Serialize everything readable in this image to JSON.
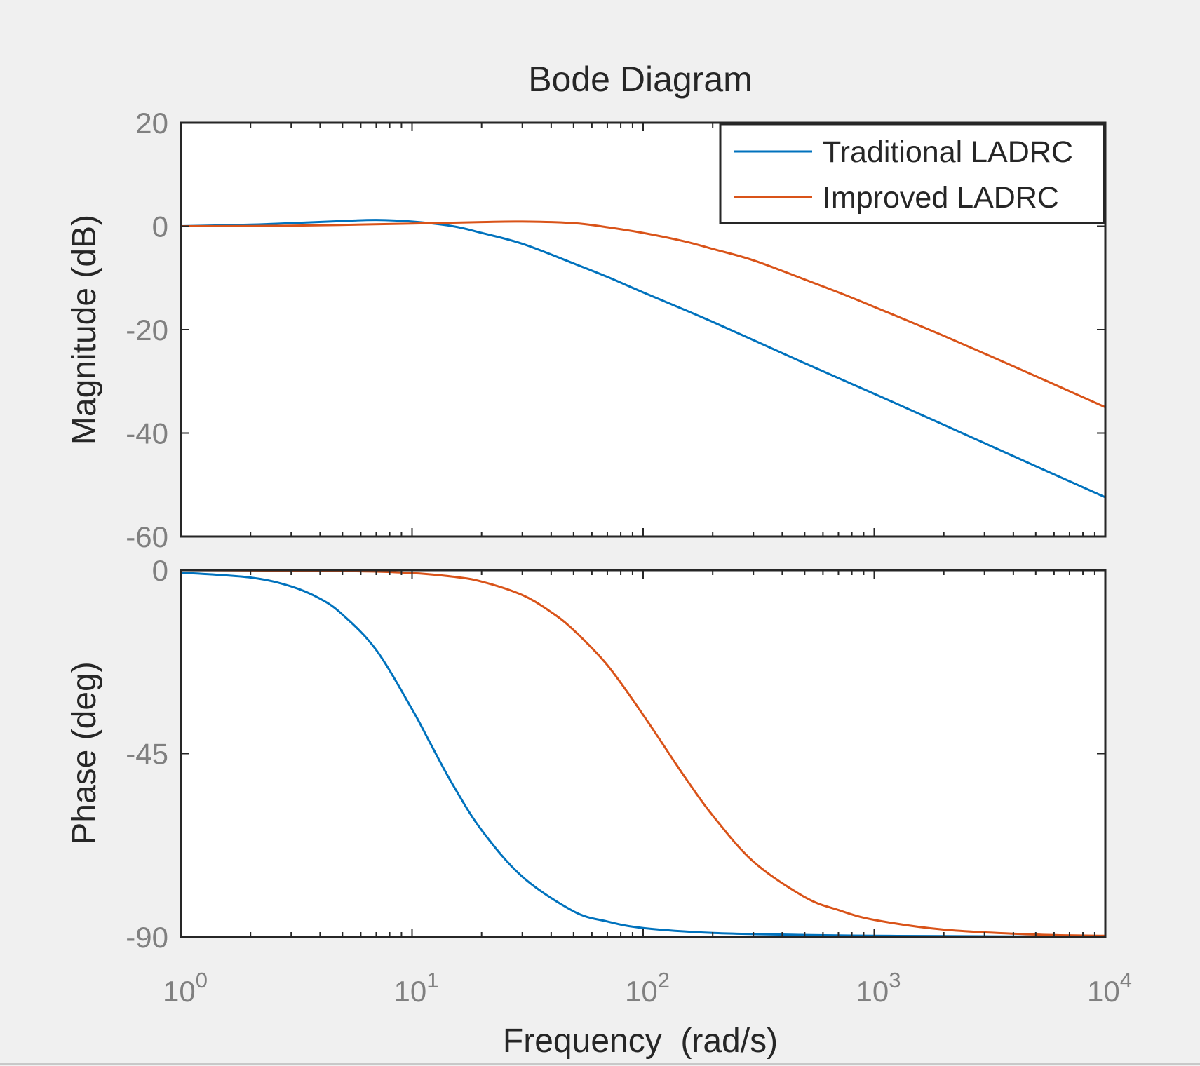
{
  "chart_data": {
    "type": "line",
    "title": "Bode Diagram",
    "xlabel": "Frequency  (rad/s)",
    "x_scale": "log",
    "xlim": [
      1,
      10000
    ],
    "x_ticks": [
      {
        "value": 1,
        "base": "10",
        "exp": "0"
      },
      {
        "value": 10,
        "base": "10",
        "exp": "1"
      },
      {
        "value": 100,
        "base": "10",
        "exp": "2"
      },
      {
        "value": 1000,
        "base": "10",
        "exp": "3"
      },
      {
        "value": 10000,
        "base": "10",
        "exp": "4"
      }
    ],
    "legend": {
      "position": "top-right",
      "entries": [
        "Traditional LADRC",
        "Improved LADRC"
      ]
    },
    "colors": {
      "traditional": "#0072BD",
      "improved": "#D95319",
      "figure_bg": "#f0f0f0",
      "axes_bg": "#ffffff",
      "axis": "#262626",
      "tick_text": "#808080"
    },
    "panels": [
      {
        "id": "magnitude",
        "ylabel": "Magnitude (dB)",
        "ylim": [
          -60,
          20
        ],
        "y_ticks": [
          20,
          0,
          -20,
          -40,
          -60
        ],
        "series": [
          {
            "name": "Traditional LADRC",
            "x": [
              1,
              2,
              3,
              5,
              7,
              10,
              15,
              20,
              30,
              50,
              70,
              100,
              200,
              500,
              1000,
              2000,
              5000,
              10000
            ],
            "y": [
              0,
              0.3,
              0.6,
              1.0,
              1.2,
              0.9,
              0,
              -1.3,
              -3.4,
              -7.2,
              -9.8,
              -12.8,
              -18.5,
              -26.5,
              -32.4,
              -38.4,
              -46.4,
              -52.4
            ]
          },
          {
            "name": "Improved LADRC",
            "x": [
              1,
              3,
              10,
              20,
              30,
              50,
              70,
              100,
              150,
              200,
              300,
              500,
              700,
              1000,
              2000,
              5000,
              10000
            ],
            "y": [
              0,
              0.1,
              0.5,
              0.8,
              0.9,
              0.6,
              -0.2,
              -1.3,
              -2.9,
              -4.4,
              -6.6,
              -10.3,
              -12.8,
              -15.6,
              -21.2,
              -29.0,
              -35.0
            ]
          }
        ]
      },
      {
        "id": "phase",
        "ylabel": "Phase (deg)",
        "ylim": [
          -90,
          0
        ],
        "y_ticks": [
          0,
          -45,
          -90
        ],
        "series": [
          {
            "name": "Traditional LADRC",
            "x": [
              1,
              2,
              3,
              4,
              5,
              7,
              10,
              12,
              15,
              20,
              30,
              50,
              70,
              100,
              200,
              500,
              1000,
              2000,
              5000,
              10000
            ],
            "y": [
              -0.6,
              -1.8,
              -4.0,
              -7.0,
              -10.9,
              -19.6,
              -34.1,
              -42.5,
              -52.6,
              -63.8,
              -75.2,
              -83.7,
              -86.2,
              -87.8,
              -89.0,
              -89.5,
              -89.7,
              -89.8,
              -89.9,
              -90.0
            ]
          },
          {
            "name": "Improved LADRC",
            "x": [
              1,
              5,
              10,
              15,
              20,
              30,
              40,
              50,
              70,
              100,
              150,
              200,
              300,
              500,
              700,
              1000,
              2000,
              5000,
              10000
            ],
            "y": [
              0,
              -0.2,
              -0.7,
              -1.6,
              -2.8,
              -6.1,
              -10.3,
              -14.7,
              -23.3,
              -35.5,
              -50.4,
              -60.2,
              -71.5,
              -80.2,
              -83.4,
              -85.8,
              -88.2,
              -89.4,
              -89.7
            ]
          }
        ]
      }
    ]
  }
}
